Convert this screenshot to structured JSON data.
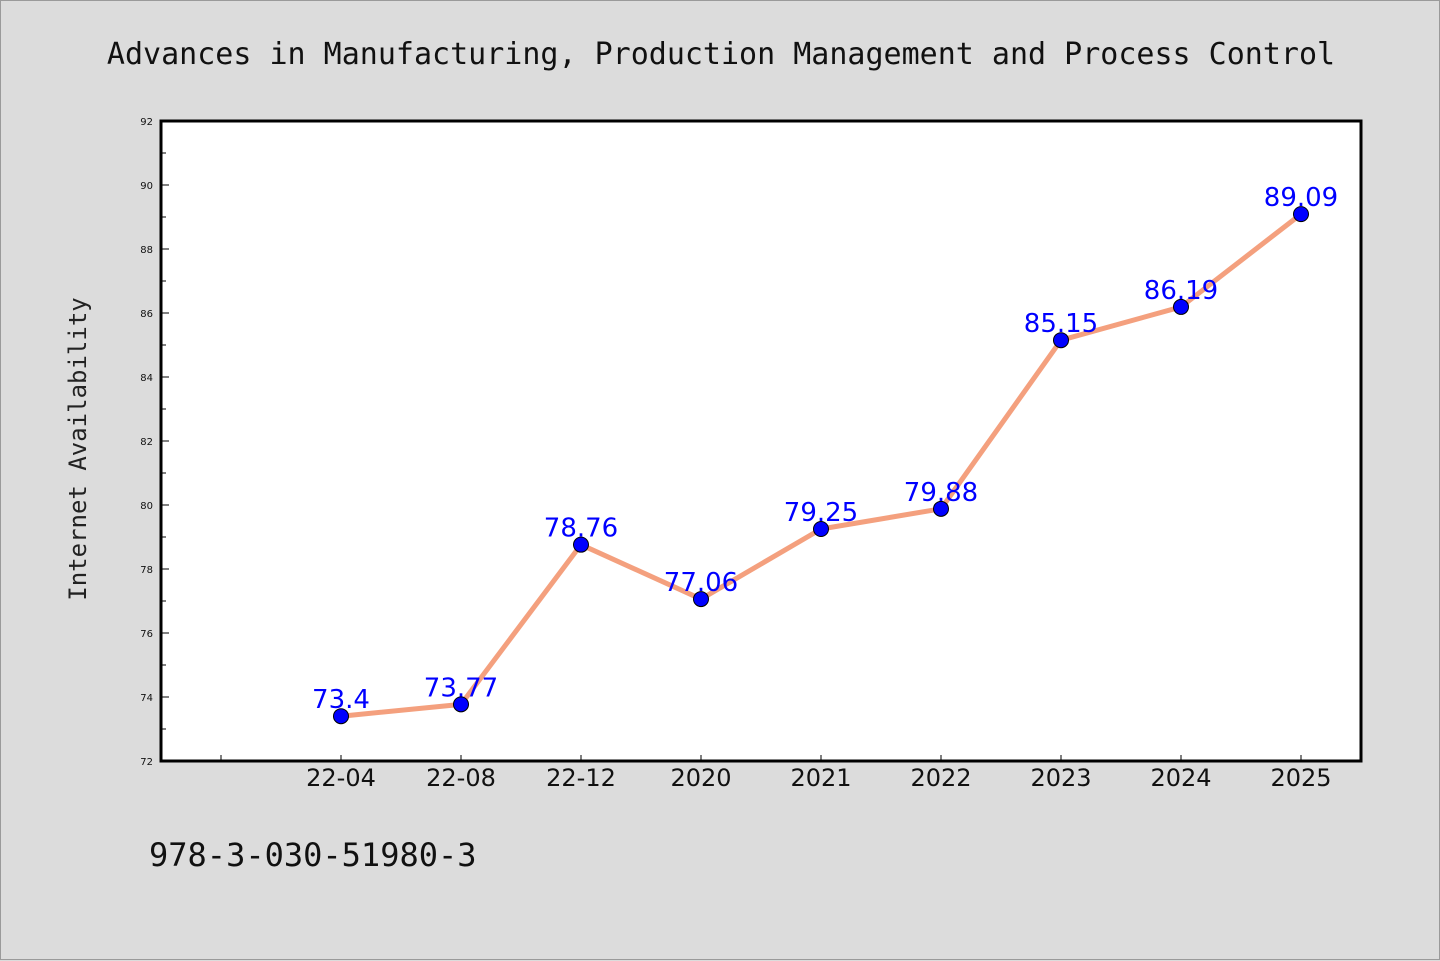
{
  "chart_data": {
    "type": "line",
    "title": "Advances in Manufacturing, Production Management and Process Control",
    "xlabel": "",
    "ylabel": "Internet Availability",
    "categories": [
      "22-04",
      "22-08",
      "22-12",
      "2020",
      "2021",
      "2022",
      "2023",
      "2024",
      "2025"
    ],
    "series": [
      {
        "values": [
          73.4,
          73.77,
          78.76,
          77.06,
          79.25,
          79.88,
          85.15,
          86.19,
          89.09
        ],
        "labels": [
          "73.4",
          "73.77",
          "78.76",
          "77.06",
          "79.25",
          "79.88",
          "85.15",
          "86.19",
          "89.09"
        ]
      }
    ],
    "ylim": [
      72,
      92
    ],
    "yticks": [
      "72",
      "74",
      "76",
      "78",
      "80",
      "82",
      "84",
      "86",
      "88",
      "90",
      "92"
    ],
    "grid": false,
    "legend": "none",
    "colors": {
      "line": "#f4a07e",
      "marker": "#0000ff",
      "label": "#0000ff",
      "background": "#dcdcdc",
      "plot_background": "#ffffff"
    }
  },
  "footer": {
    "isbn": "978-3-030-51980-3"
  }
}
